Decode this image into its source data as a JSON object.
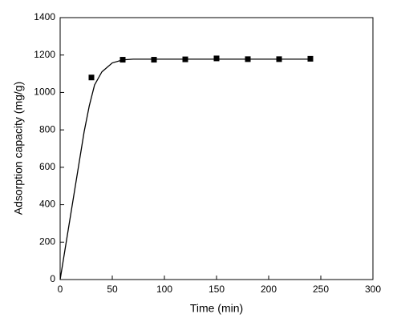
{
  "chart_data": {
    "type": "scatter",
    "xlabel": "Time (min)",
    "ylabel": "Adsorption capacity (mg/g)",
    "xlim": [
      0,
      300
    ],
    "ylim": [
      0,
      1400
    ],
    "xticks": [
      0,
      50,
      100,
      150,
      200,
      250,
      300
    ],
    "yticks": [
      0,
      200,
      400,
      600,
      800,
      1000,
      1200,
      1400
    ],
    "series": [
      {
        "type": "scatter",
        "color": "#000000",
        "x": [
          30,
          60,
          90,
          120,
          150,
          180,
          210,
          240
        ],
        "values": [
          1080,
          1175,
          1175,
          1177,
          1182,
          1178,
          1178,
          1180
        ]
      },
      {
        "type": "line",
        "color": "#000000",
        "x": [
          0,
          23,
          28,
          33,
          40,
          50,
          60,
          70,
          80,
          240
        ],
        "values": [
          0,
          790,
          930,
          1040,
          1110,
          1158,
          1174,
          1178,
          1178,
          1178
        ]
      }
    ]
  }
}
